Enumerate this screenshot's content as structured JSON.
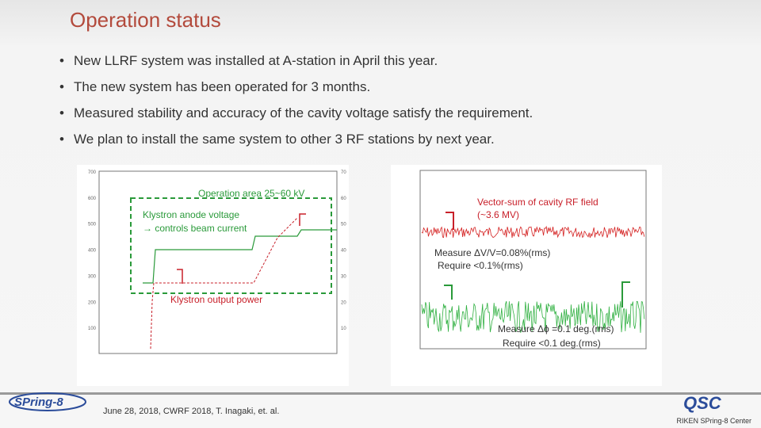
{
  "header": {
    "title": "Operation status"
  },
  "bullets": [
    "New LLRF system was installed at  A-station in April this year.",
    "The new system has been operated for 3 months.",
    "Measured stability and accuracy of the cavity voltage satisfy the requirement.",
    "We plan to install the same system to other 3 RF stations by next year."
  ],
  "left_figure": {
    "annotations": [
      "Operation area  25~60 kV",
      "Klystron anode voltage",
      "→ controls beam current",
      "Klystron output power"
    ],
    "yticks_left": [
      700,
      600,
      500,
      400,
      300,
      200,
      100
    ],
    "yticks_right": [
      70,
      60,
      50,
      40,
      30,
      20,
      10
    ]
  },
  "right_figure": {
    "annotations": [
      "Vector-sum of cavity RF field",
      "(~3.6 MV)",
      "Measure  ΔV/V=0.08%(rms)",
      "Require          <0.1%(rms)",
      "Measure  Δϕ =0.1 deg.(rms)",
      "Require     <0.1 deg.(rms)"
    ]
  },
  "footer": {
    "logo": "SPring-8",
    "citation": "June 28, 2018, CWRF 2018,   T. Inagaki, et. al.",
    "affiliation": "RIKEN SPring-8 Center"
  }
}
